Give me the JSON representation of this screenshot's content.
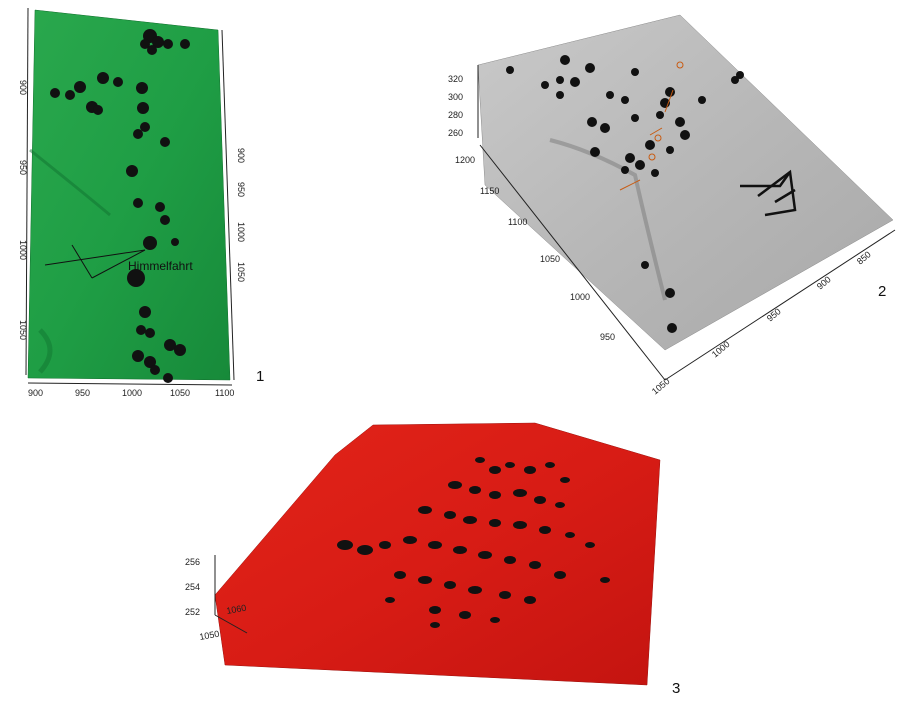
{
  "panels": [
    {
      "number": "1",
      "surface_color": "#1f9e45",
      "label": "Himmelfahrt",
      "x_ticks": [
        "900",
        "950",
        "1000",
        "1050",
        "1100"
      ],
      "left_ticks": [
        "900",
        "950",
        "1000",
        "1050"
      ],
      "right_ticks": [
        "900",
        "950",
        "1000",
        "1050"
      ]
    },
    {
      "number": "2",
      "surface_color": "#b9b9b9",
      "z_ticks": [
        "320",
        "300",
        "280",
        "260"
      ],
      "y_ticks": [
        "1200",
        "1150",
        "1100",
        "1050",
        "1000",
        "950"
      ],
      "x_ticks": [
        "1050",
        "1000",
        "950",
        "900",
        "850"
      ]
    },
    {
      "number": "3",
      "surface_color": "#e0211a",
      "z_ticks": [
        "256",
        "254",
        "252"
      ],
      "y_ticks": [
        "1060",
        "1050"
      ]
    }
  ],
  "symbols": {
    "blob": "black-blob-marker",
    "north_arrow": "north-arrow-icon"
  }
}
